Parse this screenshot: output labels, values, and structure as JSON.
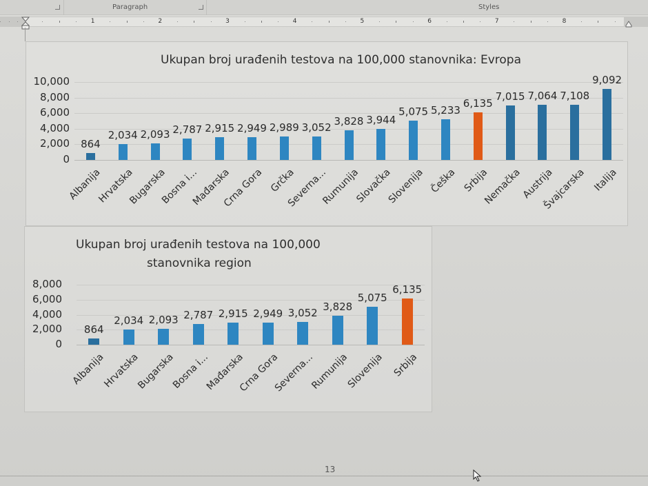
{
  "ribbon": {
    "groups": [
      {
        "label": "Paragraph"
      },
      {
        "label": "Styles"
      }
    ]
  },
  "ruler": {
    "numbers": [
      "1",
      "2",
      "3",
      "4",
      "5",
      "6",
      "7",
      "8"
    ]
  },
  "page": {
    "page_number": "13"
  },
  "colors": {
    "bar_blue": "#2e86c1",
    "bar_dark_blue": "#2a6f9e",
    "bar_orange": "#e05a17",
    "gridline": "#cbcbc8"
  },
  "chart_data": [
    {
      "type": "bar",
      "title": "Ukupan broj urađenih testova na 100,000 stanovnika: Evropa",
      "xlabel": "",
      "ylabel": "",
      "ylim": [
        0,
        10000
      ],
      "yticks": [
        "0",
        "2,000",
        "4,000",
        "6,000",
        "8,000",
        "10,000"
      ],
      "grid": true,
      "legend": null,
      "categories": [
        "Albanija",
        "Hrvatska",
        "Bugarska",
        "Bosna i...",
        "Mađarska",
        "Crna Gora",
        "Grčka",
        "Severna...",
        "Rumunija",
        "Slovačka",
        "Slovenija",
        "Češka",
        "Srbija",
        "Nemačka",
        "Austrija",
        "Švajcarska",
        "Italija"
      ],
      "values": [
        864,
        2034,
        2093,
        2787,
        2915,
        2949,
        2989,
        3052,
        3828,
        3944,
        5075,
        5233,
        6135,
        7015,
        7064,
        7108,
        9092
      ],
      "value_labels": [
        "864",
        "2,034",
        "2,093",
        "2,787",
        "2,915",
        "2,949",
        "2,989",
        "3,052",
        "3,828",
        "3,944",
        "5,075",
        "5,233",
        "6,135",
        "7,015",
        "7,064",
        "7,108",
        "9,092"
      ],
      "highlight": "Srbija",
      "highlight_color": "#e05a17"
    },
    {
      "type": "bar",
      "title": "Ukupan broj urađenih testova na 100,000 stanovnika region",
      "title_lines": [
        "Ukupan broj urađenih testova na 100,000",
        "stanovnika region"
      ],
      "xlabel": "",
      "ylabel": "",
      "ylim": [
        0,
        8000
      ],
      "yticks": [
        "0",
        "2,000",
        "4,000",
        "6,000",
        "8,000"
      ],
      "grid": true,
      "legend": null,
      "categories": [
        "Albanija",
        "Hrvatska",
        "Bugarska",
        "Bosna i...",
        "Mađarska",
        "Crna Gora",
        "Severna...",
        "Rumunija",
        "Slovenija",
        "Srbija"
      ],
      "values": [
        864,
        2034,
        2093,
        2787,
        2915,
        2949,
        3052,
        3828,
        5075,
        6135
      ],
      "value_labels": [
        "864",
        "2,034",
        "2,093",
        "2,787",
        "2,915",
        "2,949",
        "3,052",
        "3,828",
        "5,075",
        "6,135"
      ],
      "highlight": "Srbija",
      "highlight_color": "#e05a17"
    }
  ]
}
